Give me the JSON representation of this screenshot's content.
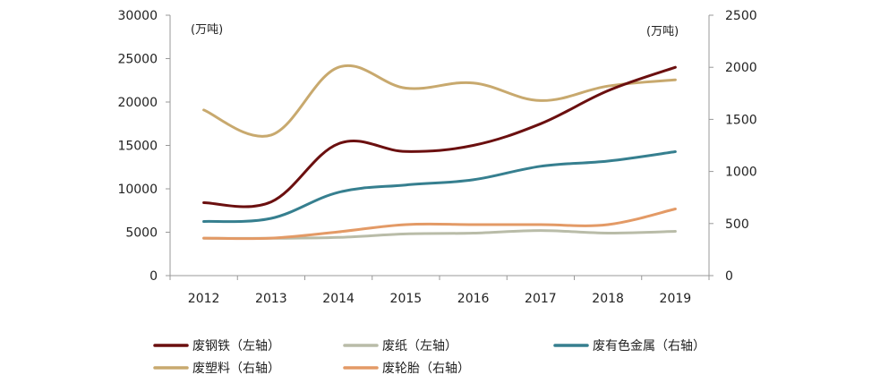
{
  "chart_data": {
    "type": "line",
    "categories": [
      "2012",
      "2013",
      "2014",
      "2015",
      "2016",
      "2017",
      "2018",
      "2019"
    ],
    "left_axis": {
      "unit": "(万吨)",
      "ticks": [
        "30000",
        "25000",
        "20000",
        "15000",
        "10000",
        "5000",
        "0"
      ],
      "ylim": [
        0,
        30000
      ]
    },
    "right_axis": {
      "unit": "(万吨)",
      "ticks": [
        "2500",
        "2000",
        "1500",
        "1000",
        "500",
        "0"
      ],
      "ylim": [
        0,
        2500
      ]
    },
    "series": [
      {
        "name": "废钢铁（左轴）",
        "axis": "left",
        "color": "#6b0f0f",
        "values": [
          8400,
          8500,
          15200,
          14300,
          15000,
          17500,
          21300,
          24000
        ]
      },
      {
        "name": "废纸（左轴）",
        "axis": "left",
        "color": "#b9bca8",
        "values": [
          4300,
          4300,
          4400,
          4800,
          4900,
          5200,
          4900,
          5100
        ]
      },
      {
        "name": "废有色金属（右轴）",
        "axis": "right",
        "color": "#367f8f",
        "values": [
          520,
          550,
          800,
          870,
          920,
          1050,
          1100,
          1190
        ]
      },
      {
        "name": "废塑料（右轴）",
        "axis": "right",
        "color": "#c8a96e",
        "values": [
          1590,
          1350,
          2000,
          1800,
          1850,
          1680,
          1820,
          1880
        ]
      },
      {
        "name": "废轮胎（右轴）",
        "axis": "right",
        "color": "#e39a66",
        "values": [
          360,
          360,
          420,
          490,
          490,
          490,
          490,
          640
        ]
      }
    ],
    "legend_position": "bottom",
    "grid": false
  }
}
